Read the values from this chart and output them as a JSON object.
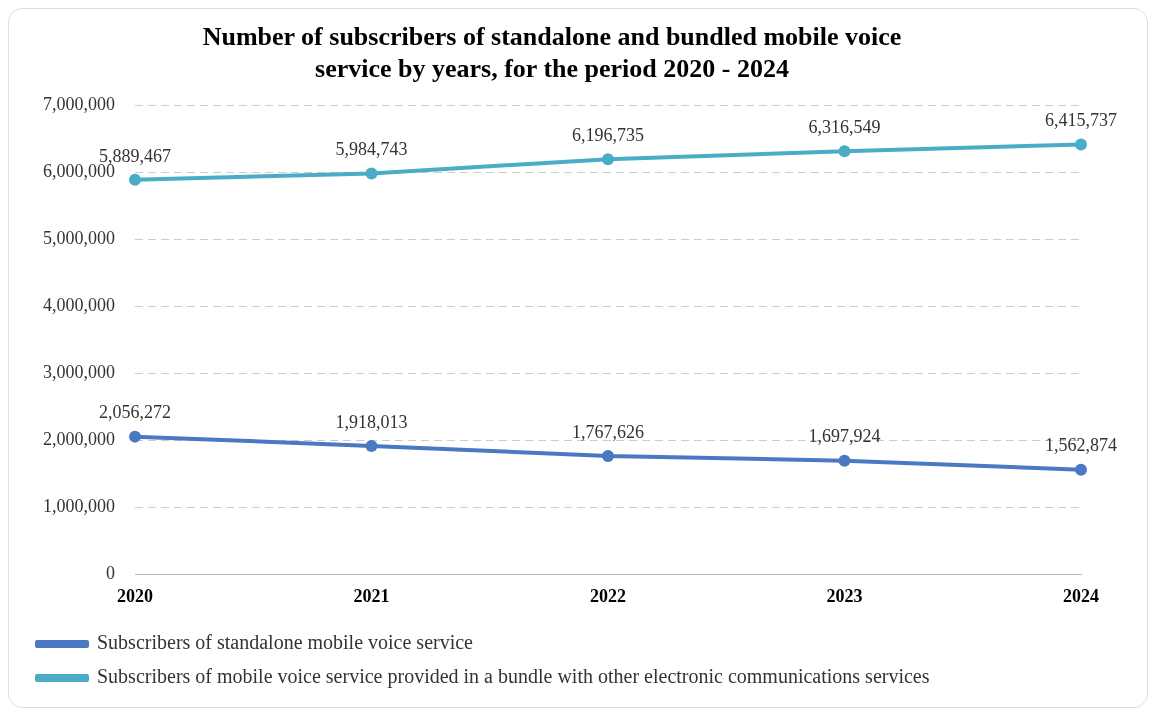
{
  "chart_data": {
    "type": "line",
    "title": "Number of subscribers of standalone and bundled mobile voice service by years, for the period 2020 - 2024",
    "categories": [
      "2020",
      "2021",
      "2022",
      "2023",
      "2024"
    ],
    "series": [
      {
        "name": "Subscribers of standalone mobile voice service",
        "color": "#4a78c2",
        "values": [
          2056272,
          1918013,
          1767626,
          1697924,
          1562874
        ],
        "value_labels": [
          "2,056,272",
          "1,918,013",
          "1,767,626",
          "1,697,924",
          "1,562,874"
        ]
      },
      {
        "name": "Subscribers of mobile voice service provided in a bundle with other electronic communications services",
        "color": "#4bacc6",
        "values": [
          5889467,
          5984743,
          6196735,
          6316549,
          6415737
        ],
        "value_labels": [
          "5,889,467",
          "5,984,743",
          "6,196,735",
          "6,316,549",
          "6,415,737"
        ]
      }
    ],
    "ylim": [
      0,
      7000000
    ],
    "yticks": [
      0,
      {
        "value": 1000000,
        "label": "1,000,000"
      },
      {
        "value": 2000000,
        "label": "2,000,000"
      },
      {
        "value": 3000000,
        "label": "3,000,000"
      },
      {
        "value": 4000000,
        "label": "4,000,000"
      },
      {
        "value": 5000000,
        "label": "5,000,000"
      },
      {
        "value": 6000000,
        "label": "6,000,000"
      },
      {
        "value": 7000000,
        "label": "7,000,000"
      }
    ],
    "grid": "y",
    "legend": "bottom",
    "marker": "circle",
    "line_style": "solid"
  }
}
